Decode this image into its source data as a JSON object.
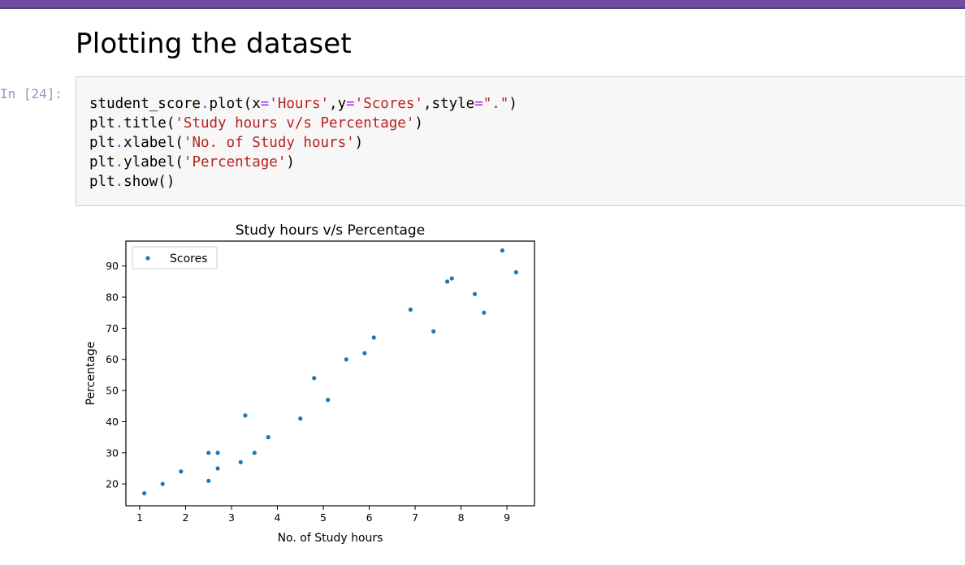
{
  "notebook": {
    "heading": "Plotting the dataset",
    "cell": {
      "prompt": "In [24]:",
      "code_lines": [
        [
          {
            "t": "student_score",
            "c": "kw"
          },
          {
            "t": ".",
            "c": "op"
          },
          {
            "t": "plot(x",
            "c": "kw"
          },
          {
            "t": "=",
            "c": "op"
          },
          {
            "t": "'Hours'",
            "c": "str"
          },
          {
            "t": ",y",
            "c": "kw"
          },
          {
            "t": "=",
            "c": "op"
          },
          {
            "t": "'Scores'",
            "c": "str"
          },
          {
            "t": ",style",
            "c": "kw"
          },
          {
            "t": "=",
            "c": "op"
          },
          {
            "t": "\".\"",
            "c": "str"
          },
          {
            "t": ")",
            "c": "kw"
          }
        ],
        [
          {
            "t": "plt",
            "c": "kw"
          },
          {
            "t": ".",
            "c": "op"
          },
          {
            "t": "title(",
            "c": "kw"
          },
          {
            "t": "'Study hours v/s Percentage'",
            "c": "str"
          },
          {
            "t": ")",
            "c": "kw"
          }
        ],
        [
          {
            "t": "plt",
            "c": "kw"
          },
          {
            "t": ".",
            "c": "op"
          },
          {
            "t": "xlabel(",
            "c": "kw"
          },
          {
            "t": "'No. of Study hours'",
            "c": "str"
          },
          {
            "t": ")",
            "c": "kw"
          }
        ],
        [
          {
            "t": "plt",
            "c": "kw"
          },
          {
            "t": ".",
            "c": "op"
          },
          {
            "t": "ylabel(",
            "c": "kw"
          },
          {
            "t": "'Percentage'",
            "c": "str"
          },
          {
            "t": ")",
            "c": "kw"
          }
        ],
        [
          {
            "t": "plt",
            "c": "kw"
          },
          {
            "t": ".",
            "c": "op"
          },
          {
            "t": "show()",
            "c": "kw"
          }
        ]
      ]
    }
  },
  "colors": {
    "topbar": "#6f4ea1",
    "point": "#1f77b4",
    "string": "#ba2121",
    "operator": "#aa22ff"
  },
  "chart_data": {
    "type": "scatter",
    "title": "Study hours v/s Percentage",
    "xlabel": "No. of Study hours",
    "ylabel": "Percentage",
    "xlim": [
      0.7,
      9.6
    ],
    "ylim": [
      13,
      98
    ],
    "xticks": [
      1,
      2,
      3,
      4,
      5,
      6,
      7,
      8,
      9
    ],
    "yticks": [
      20,
      30,
      40,
      50,
      60,
      70,
      80,
      90
    ],
    "legend": {
      "placement": "top-left",
      "entries": [
        "Scores"
      ]
    },
    "grid": false,
    "series": [
      {
        "name": "Scores",
        "x": [
          1.1,
          1.5,
          1.9,
          2.5,
          2.5,
          2.7,
          2.7,
          3.2,
          3.3,
          3.5,
          3.8,
          4.5,
          4.8,
          5.1,
          5.5,
          5.9,
          6.1,
          6.9,
          7.4,
          7.7,
          7.8,
          8.3,
          8.5,
          8.9,
          9.2
        ],
        "y": [
          17,
          20,
          24,
          21,
          30,
          25,
          30,
          27,
          42,
          30,
          35,
          41,
          54,
          47,
          60,
          62,
          67,
          76,
          69,
          85,
          86,
          81,
          75,
          95,
          88
        ]
      }
    ]
  }
}
